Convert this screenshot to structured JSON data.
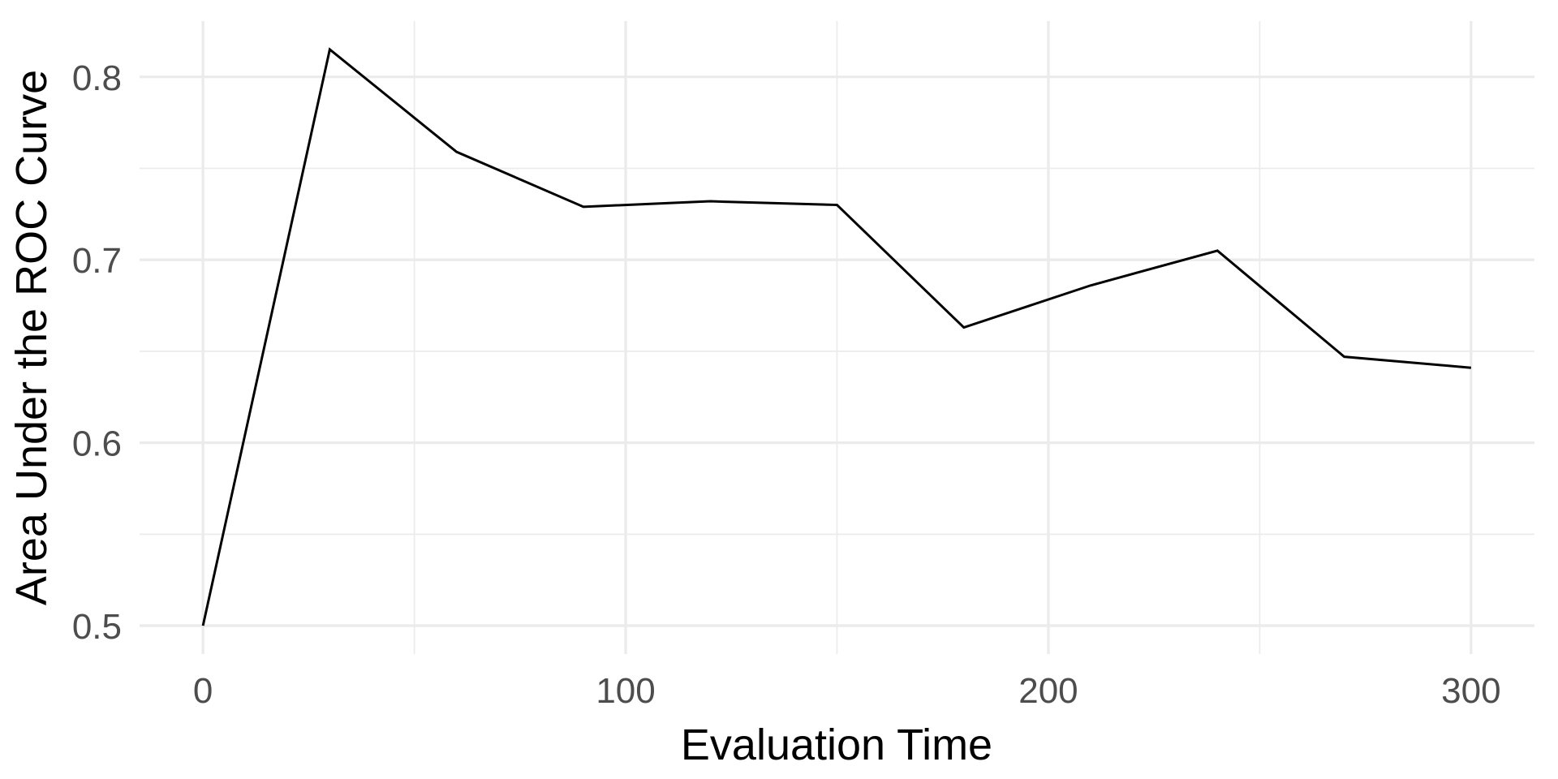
{
  "chart_data": {
    "type": "line",
    "title": "",
    "xlabel": "Evaluation Time",
    "ylabel": "Area Under the ROC Curve",
    "x": [
      0,
      30,
      60,
      90,
      120,
      150,
      180,
      210,
      240,
      270,
      300
    ],
    "y": [
      0.5,
      0.815,
      0.759,
      0.729,
      0.732,
      0.73,
      0.663,
      0.686,
      0.705,
      0.647,
      0.641
    ],
    "x_ticks": {
      "values": [
        0,
        100,
        200,
        300
      ],
      "labels": [
        "0",
        "100",
        "200",
        "300"
      ]
    },
    "y_ticks": {
      "values": [
        0.5,
        0.6,
        0.7,
        0.8
      ],
      "labels": [
        "0.5",
        "0.6",
        "0.7",
        "0.8"
      ]
    },
    "x_minor": [
      50,
      150,
      250
    ],
    "y_minor": [
      0.55,
      0.65,
      0.75
    ],
    "xlim": [
      -15,
      315
    ],
    "ylim": [
      0.4845,
      0.8305
    ],
    "grid": "on",
    "legend": "none",
    "colors": {
      "line": "#000000",
      "grid": "#EBEBEB",
      "tick_label": "#4D4D4D",
      "axis_title": "#000000",
      "background": "#FFFFFF"
    }
  }
}
